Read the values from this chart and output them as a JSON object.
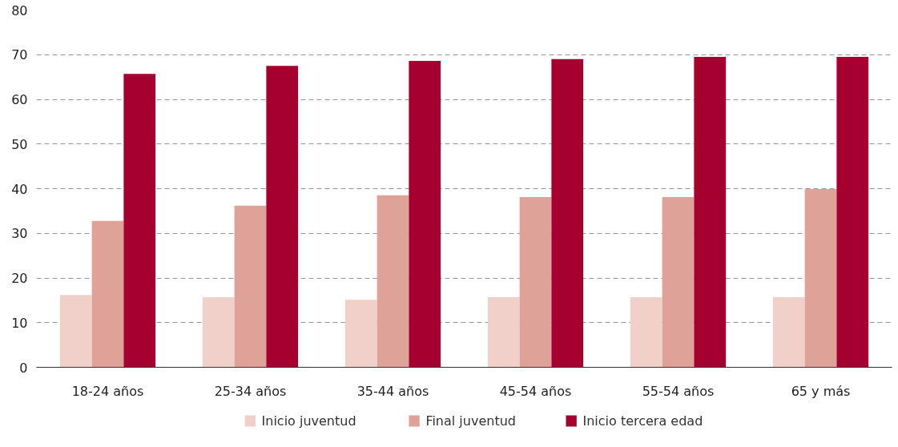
{
  "chart_data": {
    "type": "bar",
    "categories": [
      "18-24 años",
      "25-34 años",
      "35-44 años",
      "45-54 años",
      "55-54 años",
      "65 y más"
    ],
    "series": [
      {
        "name": "Inicio juventud",
        "color": "#f0d0c8",
        "values": [
          16.2,
          15.7,
          15.1,
          15.7,
          15.7,
          15.7
        ]
      },
      {
        "name": "Final juventud",
        "color": "#dea298",
        "values": [
          32.8,
          36.2,
          38.5,
          38.1,
          38.1,
          39.9
        ]
      },
      {
        "name": "Inicio tercera edad",
        "color": "#a50030",
        "values": [
          65.7,
          67.5,
          68.6,
          69.0,
          69.5,
          69.5
        ]
      }
    ],
    "ylim": [
      0,
      80
    ],
    "yticks": [
      0,
      10,
      20,
      30,
      40,
      50,
      60,
      70,
      80
    ],
    "grid": "y",
    "legend": "bottom"
  }
}
